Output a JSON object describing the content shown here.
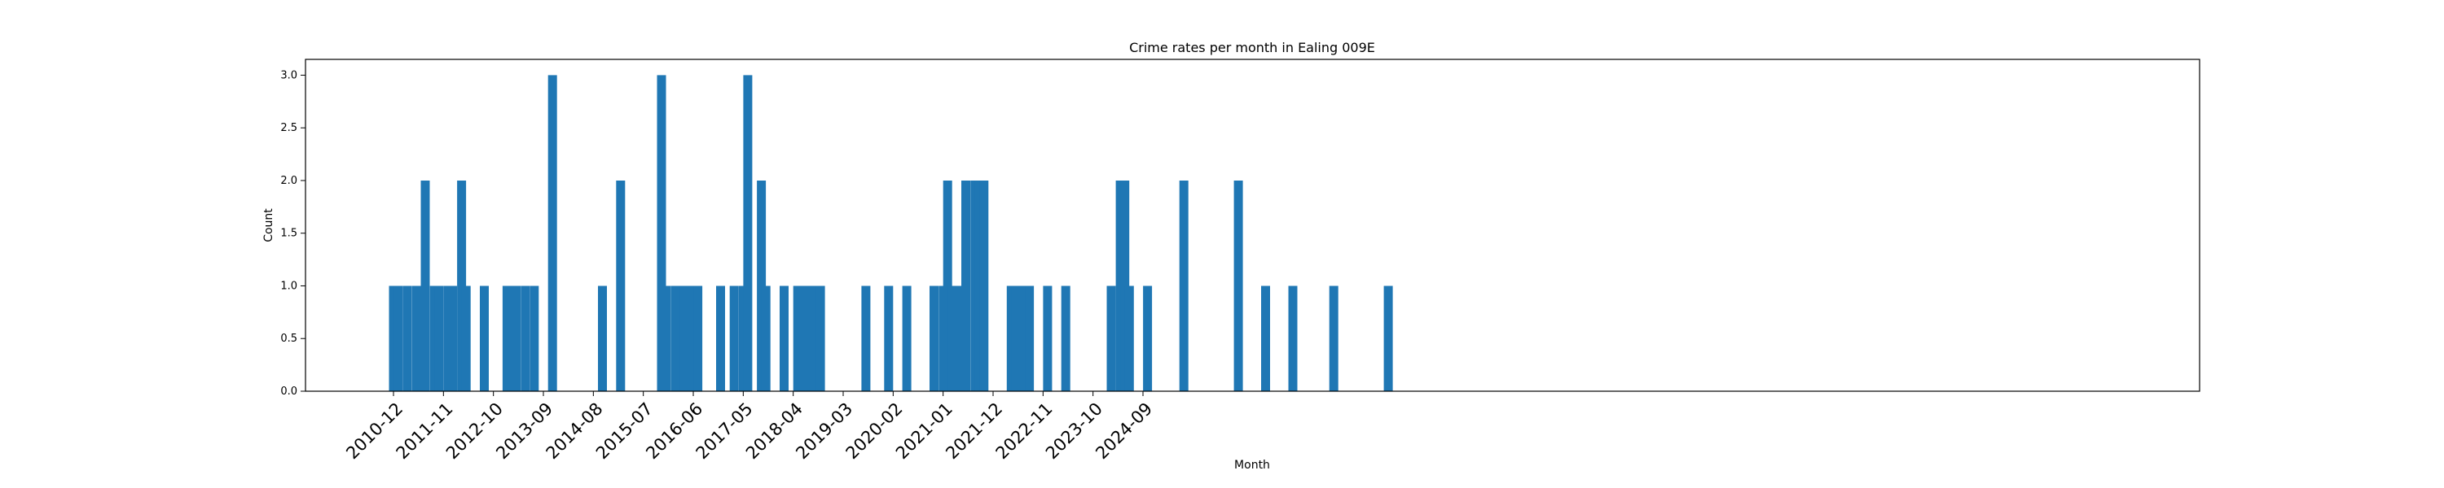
{
  "chart_data": {
    "type": "bar",
    "title": "Crime rates per month in Ealing 009E",
    "xlabel": "Month",
    "ylabel": "Count",
    "ylim": [
      0,
      3.15
    ],
    "yticks": [
      "0.0",
      "0.5",
      "1.0",
      "1.5",
      "2.0",
      "2.5",
      "3.0"
    ],
    "xticks": [
      "2010-12",
      "2011-11",
      "2012-10",
      "2013-09",
      "2014-08",
      "2015-07",
      "2016-06",
      "2017-05",
      "2018-04",
      "2019-03",
      "2020-02",
      "2021-01",
      "2021-12",
      "2022-11",
      "2023-10",
      "2024-09"
    ],
    "bar_color": "#1f77b4",
    "grid": false,
    "categories": [
      "2010-12",
      "2011-01",
      "2011-03",
      "2011-05",
      "2011-06",
      "2011-07",
      "2011-09",
      "2011-10",
      "2011-12",
      "2012-01",
      "2012-03",
      "2012-04",
      "2012-08",
      "2013-01",
      "2013-02",
      "2013-03",
      "2013-05",
      "2013-07",
      "2013-11",
      "2014-10",
      "2015-02",
      "2015-11",
      "2015-12",
      "2016-02",
      "2016-03",
      "2016-04",
      "2016-05",
      "2016-06",
      "2016-07",
      "2017-00",
      "2017-03",
      "2017-05",
      "2017-06",
      "2017-09",
      "2017-10",
      "2018-02",
      "2018-05",
      "2018-06",
      "2018-07",
      "2018-08",
      "2018-09",
      "2018-10",
      "2019-08",
      "2020-01",
      "2020-05",
      "2020-11",
      "2021-01",
      "2021-02",
      "2021-03",
      "2021-04",
      "2021-05",
      "2021-06",
      "2021-08",
      "2021-09",
      "2021-10",
      "2022-04",
      "2022-05",
      "2022-06",
      "2022-07",
      "2022-08",
      "2022-12",
      "2023-04",
      "2024-02",
      "2024-04",
      "2024-05",
      "2024-06",
      "2024-10",
      "2025-06",
      "2026-06",
      "2026-12",
      "2027-06",
      "2028-03",
      "2029-03"
    ],
    "values": [
      1,
      1,
      1,
      1,
      1,
      2,
      1,
      1,
      1,
      1,
      2,
      1,
      1,
      1,
      1,
      1,
      1,
      1,
      3,
      1,
      2,
      3,
      1,
      1,
      1,
      1,
      1,
      1,
      1,
      1,
      1,
      1,
      3,
      2,
      1,
      1,
      1,
      1,
      1,
      1,
      1,
      1,
      1,
      1,
      1,
      1,
      1,
      2,
      1,
      1,
      1,
      2,
      2,
      2,
      2,
      1,
      1,
      1,
      1,
      1,
      1,
      1,
      1,
      2,
      2,
      1,
      1,
      2,
      2,
      1,
      1,
      1,
      1
    ]
  }
}
